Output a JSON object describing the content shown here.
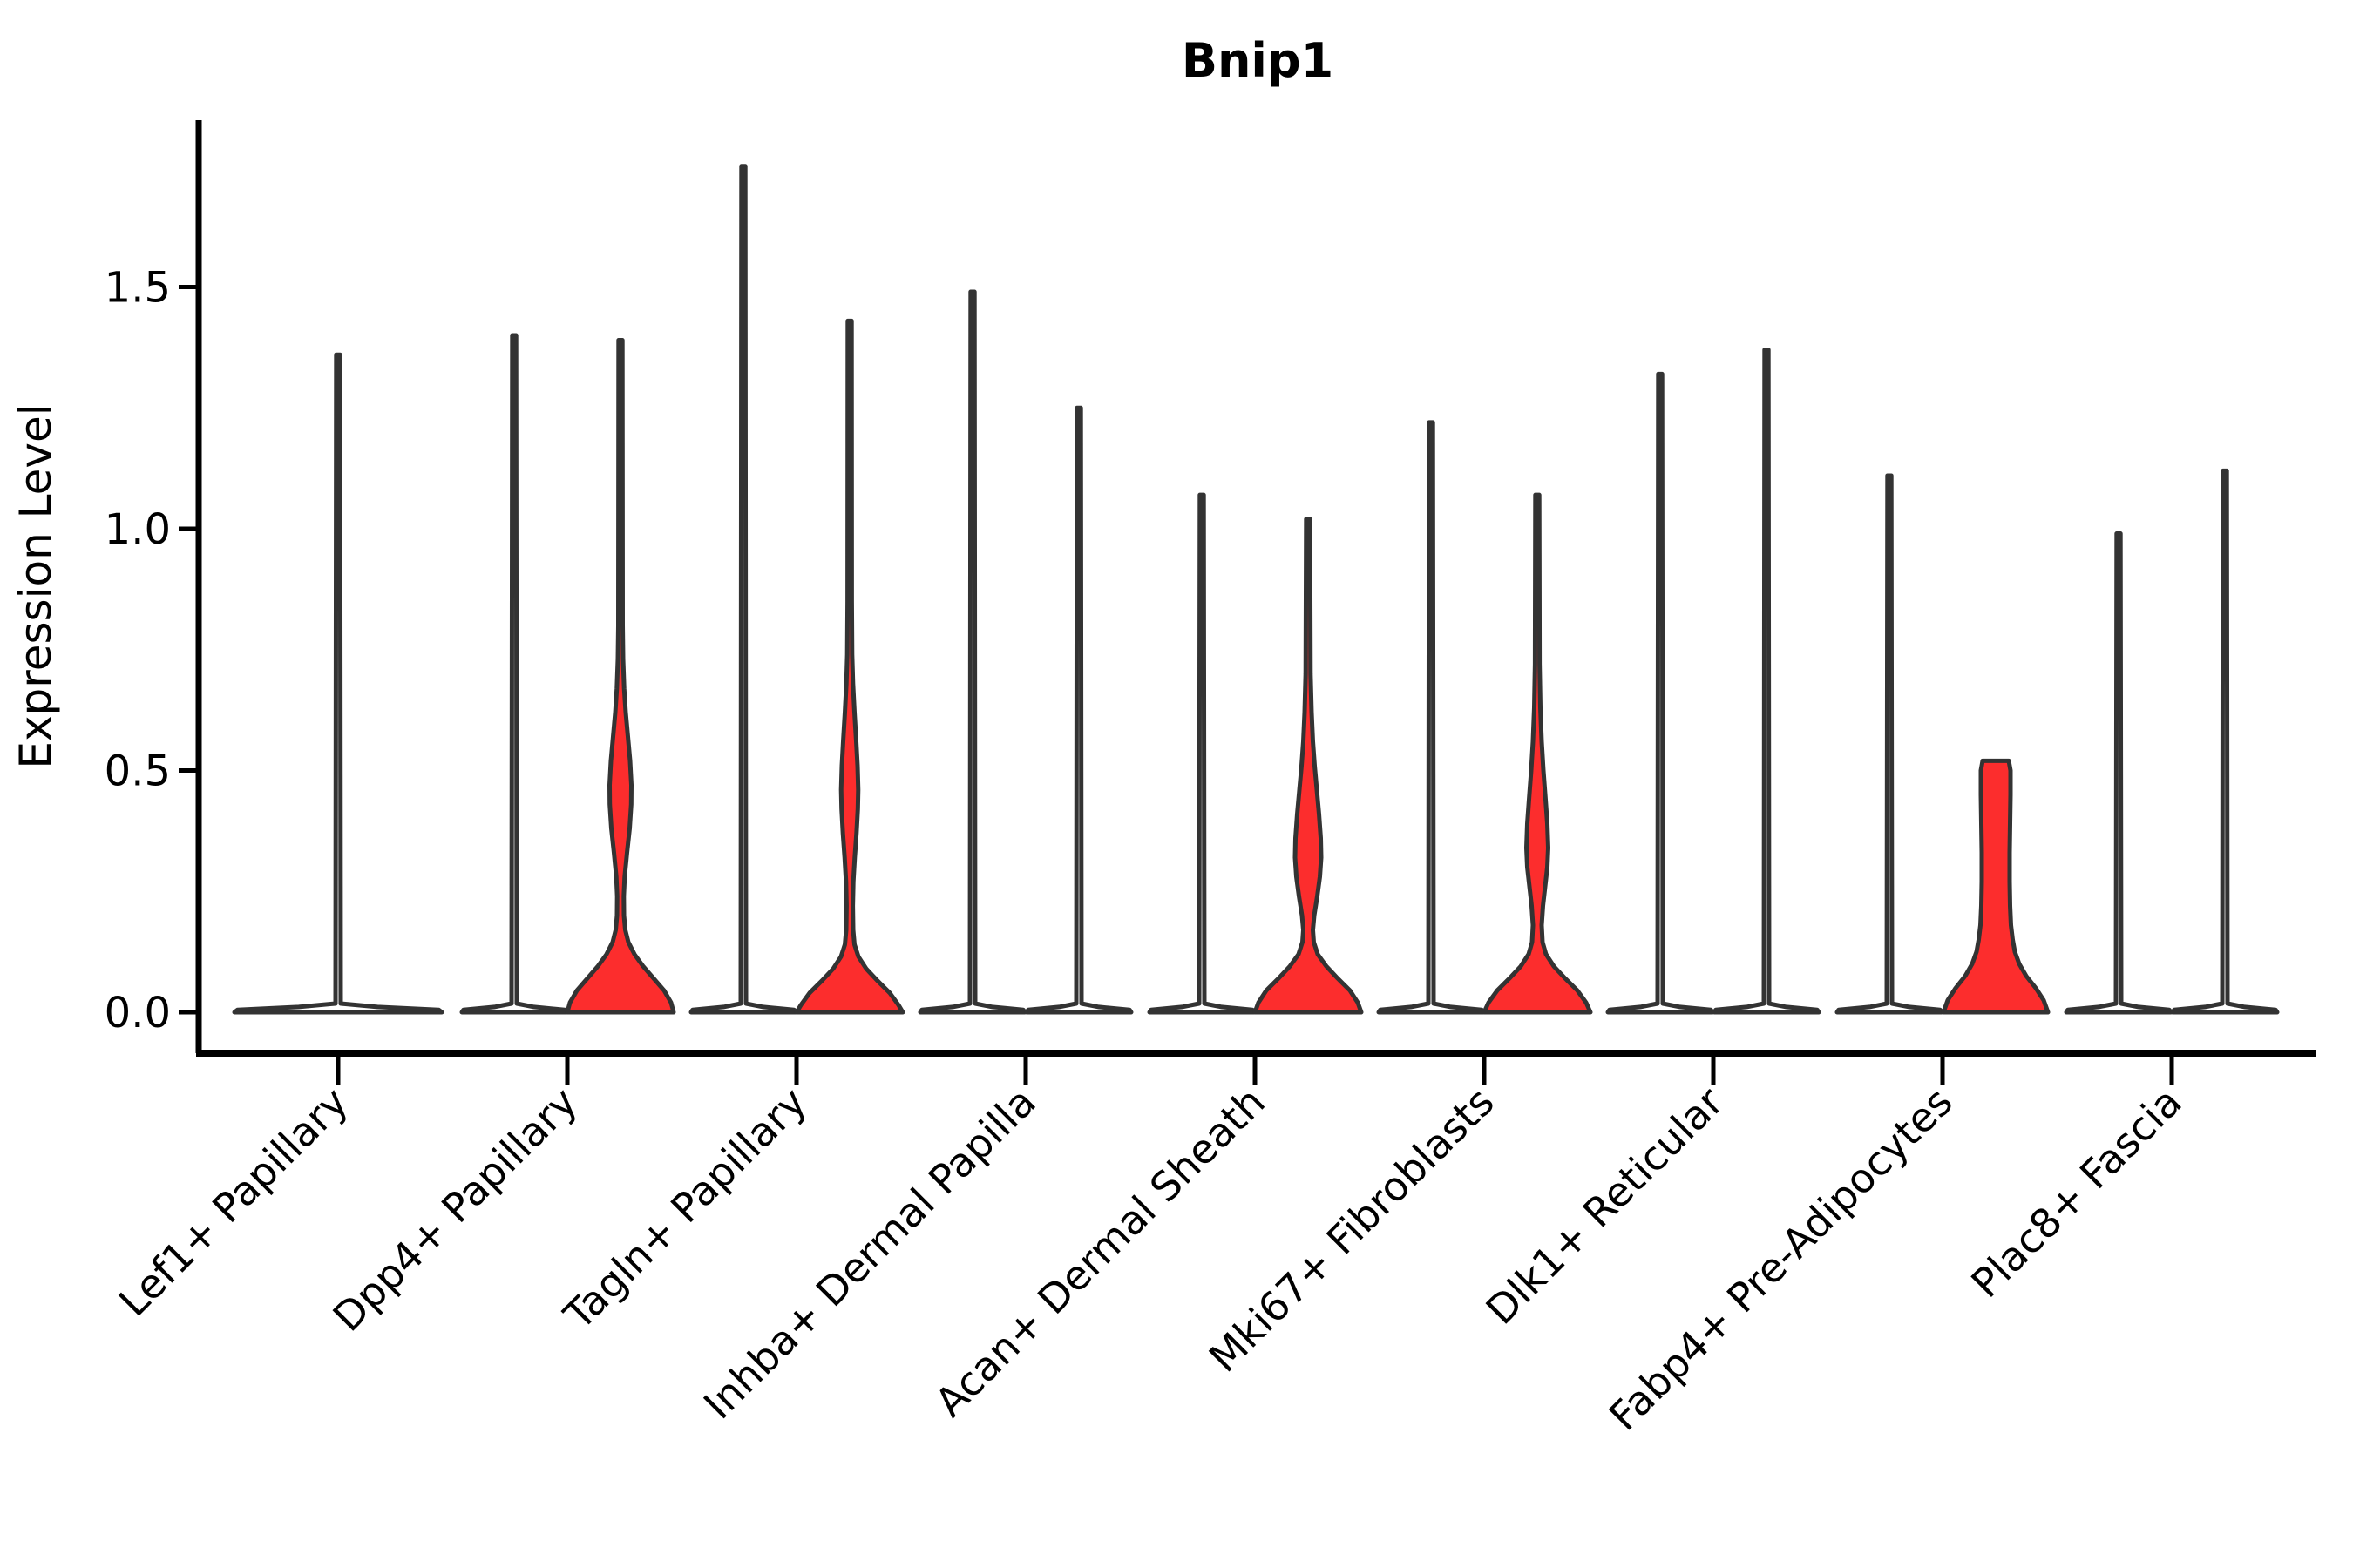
{
  "figure": {
    "title": "Bnip1",
    "ylabel": "Expression Level"
  },
  "chart_data": {
    "type": "violin",
    "title": "Bnip1",
    "xlabel": "",
    "ylabel": "Expression Level",
    "ylim": [
      0,
      1.85
    ],
    "grid": false,
    "legend": "none",
    "yticks": [
      {
        "value": 0.0,
        "label": "0.0"
      },
      {
        "value": 0.5,
        "label": "0.5"
      },
      {
        "value": 1.0,
        "label": "1.0"
      },
      {
        "value": 1.5,
        "label": "1.5"
      }
    ],
    "colors": {
      "violin_fill_red": "#FC2D2D",
      "violin_fill_plain": "#FFFFFF",
      "violin_edge": "#333333",
      "axis": "#000000",
      "text": "#000000",
      "background": "#FFFFFF"
    },
    "categories": [
      {
        "label": "Lef1+ Papillary",
        "violins": [
          {
            "slot": "single",
            "shape": "flat",
            "max": 1.36,
            "fill": "plain"
          }
        ]
      },
      {
        "label": "Dpp4+ Papillary",
        "violins": [
          {
            "slot": "left",
            "shape": "flat",
            "max": 1.4,
            "fill": "plain"
          },
          {
            "slot": "right",
            "shape": "profile",
            "max": 1.39,
            "fill": "red",
            "profile": [
              [
                0,
                61
              ],
              [
                0.02,
                58
              ],
              [
                0.045,
                50
              ],
              [
                0.07,
                38
              ],
              [
                0.095,
                26
              ],
              [
                0.12,
                16
              ],
              [
                0.145,
                9
              ],
              [
                0.17,
                5.5
              ],
              [
                0.2,
                4
              ],
              [
                0.24,
                3.8
              ],
              [
                0.28,
                4.8
              ],
              [
                0.33,
                7.5
              ],
              [
                0.38,
                10.5
              ],
              [
                0.43,
                12.3
              ],
              [
                0.47,
                12.5
              ],
              [
                0.52,
                11
              ],
              [
                0.57,
                8.5
              ],
              [
                0.62,
                6
              ],
              [
                0.67,
                4.2
              ],
              [
                0.73,
                3
              ],
              [
                0.8,
                2.5
              ],
              [
                1.39,
                2.2
              ]
            ]
          }
        ]
      },
      {
        "label": "Tagln+ Papillary",
        "violins": [
          {
            "slot": "left",
            "shape": "flat",
            "max": 1.75,
            "fill": "plain"
          },
          {
            "slot": "right",
            "shape": "profile",
            "max": 1.43,
            "fill": "red",
            "profile": [
              [
                0,
                61
              ],
              [
                0.015,
                56
              ],
              [
                0.04,
                46
              ],
              [
                0.065,
                32
              ],
              [
                0.09,
                19
              ],
              [
                0.115,
                10
              ],
              [
                0.14,
                5.5
              ],
              [
                0.17,
                4
              ],
              [
                0.22,
                3.6
              ],
              [
                0.27,
                4.2
              ],
              [
                0.32,
                5.8
              ],
              [
                0.37,
                7.8
              ],
              [
                0.42,
                9.3
              ],
              [
                0.46,
                9.8
              ],
              [
                0.51,
                9
              ],
              [
                0.56,
                7.5
              ],
              [
                0.62,
                5.5
              ],
              [
                0.68,
                3.8
              ],
              [
                0.74,
                2.8
              ],
              [
                0.85,
                2.4
              ],
              [
                1.43,
                2.2
              ]
            ]
          }
        ]
      },
      {
        "label": "Inhba+ Dermal Papilla",
        "violins": [
          {
            "slot": "left",
            "shape": "flat",
            "max": 1.49,
            "fill": "plain"
          },
          {
            "slot": "right",
            "shape": "flat",
            "max": 1.25,
            "fill": "plain"
          }
        ]
      },
      {
        "label": "Acan+ Dermal Sheath",
        "violins": [
          {
            "slot": "left",
            "shape": "flat",
            "max": 1.07,
            "fill": "plain"
          },
          {
            "slot": "right",
            "shape": "profile",
            "max": 1.02,
            "fill": "red",
            "profile": [
              [
                0,
                61
              ],
              [
                0.02,
                57
              ],
              [
                0.045,
                48
              ],
              [
                0.07,
                34
              ],
              [
                0.095,
                21
              ],
              [
                0.12,
                11
              ],
              [
                0.145,
                6.5
              ],
              [
                0.17,
                5.5
              ],
              [
                0.2,
                7
              ],
              [
                0.24,
                10.5
              ],
              [
                0.28,
                13.5
              ],
              [
                0.32,
                15
              ],
              [
                0.36,
                14.5
              ],
              [
                0.41,
                12.5
              ],
              [
                0.46,
                10
              ],
              [
                0.51,
                7.5
              ],
              [
                0.56,
                5.5
              ],
              [
                0.62,
                4
              ],
              [
                0.7,
                2.8
              ],
              [
                1.02,
                2.2
              ]
            ]
          }
        ]
      },
      {
        "label": "Mki67+ Fibroblasts",
        "violins": [
          {
            "slot": "left",
            "shape": "flat",
            "max": 1.22,
            "fill": "plain"
          },
          {
            "slot": "right",
            "shape": "profile",
            "max": 1.07,
            "fill": "red",
            "profile": [
              [
                0,
                61
              ],
              [
                0.02,
                56
              ],
              [
                0.045,
                46
              ],
              [
                0.07,
                32
              ],
              [
                0.095,
                19
              ],
              [
                0.12,
                10
              ],
              [
                0.145,
                6
              ],
              [
                0.18,
                5
              ],
              [
                0.22,
                6.5
              ],
              [
                0.26,
                9
              ],
              [
                0.3,
                11.5
              ],
              [
                0.34,
                12.5
              ],
              [
                0.39,
                11.5
              ],
              [
                0.44,
                9.5
              ],
              [
                0.5,
                7
              ],
              [
                0.56,
                5
              ],
              [
                0.63,
                3.5
              ],
              [
                0.72,
                2.6
              ],
              [
                1.07,
                2.2
              ]
            ]
          }
        ]
      },
      {
        "label": "Dlk1+ Reticular",
        "violins": [
          {
            "slot": "left",
            "shape": "flat",
            "max": 1.32,
            "fill": "plain"
          },
          {
            "slot": "right",
            "shape": "flat",
            "max": 1.37,
            "fill": "plain"
          }
        ]
      },
      {
        "label": "Fabp4+ Pre-Adipocytes",
        "violins": [
          {
            "slot": "left",
            "shape": "flat",
            "max": 1.11,
            "fill": "plain"
          },
          {
            "slot": "right",
            "shape": "profile",
            "max": 0.52,
            "fill": "red",
            "flat_top": true,
            "profile": [
              [
                0,
                60
              ],
              [
                0.025,
                55
              ],
              [
                0.05,
                46
              ],
              [
                0.075,
                35
              ],
              [
                0.1,
                27
              ],
              [
                0.125,
                22
              ],
              [
                0.15,
                19.5
              ],
              [
                0.18,
                17.5
              ],
              [
                0.22,
                16.5
              ],
              [
                0.27,
                16
              ],
              [
                0.33,
                16
              ],
              [
                0.39,
                16.5
              ],
              [
                0.45,
                17
              ],
              [
                0.5,
                17
              ],
              [
                0.52,
                15
              ]
            ]
          }
        ]
      },
      {
        "label": "Plac8+ Fascia",
        "violins": [
          {
            "slot": "left",
            "shape": "flat",
            "max": 0.99,
            "fill": "plain"
          },
          {
            "slot": "right",
            "shape": "flat",
            "max": 1.12,
            "fill": "plain"
          }
        ]
      }
    ]
  }
}
